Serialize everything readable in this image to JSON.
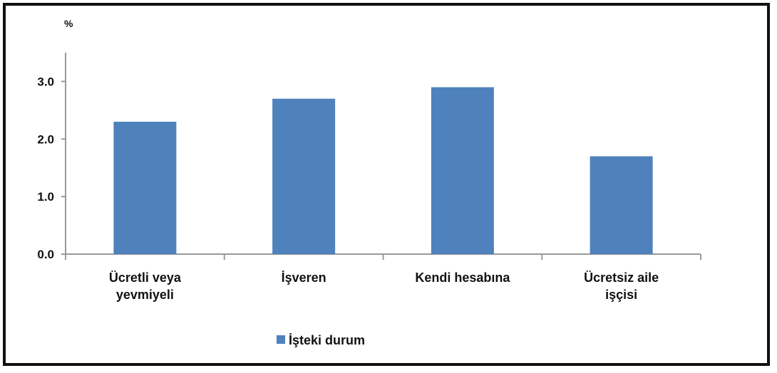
{
  "chart_data": {
    "type": "bar",
    "unit_label": "%",
    "categories": [
      [
        "Ücretli veya",
        "yevmiyeli"
      ],
      [
        "İşveren"
      ],
      [
        "Kendi hesabına"
      ],
      [
        "Ücretsiz aile",
        "işçisi"
      ]
    ],
    "series": [
      {
        "name": "İşteki durum",
        "values": [
          2.3,
          2.7,
          2.9,
          1.7
        ],
        "color": "#4f81bd"
      }
    ],
    "yticks": [
      "0.0",
      "1.0",
      "2.0",
      "3.0"
    ],
    "ylim": [
      0,
      3.5
    ],
    "grid": false,
    "legend_position": "bottom-center",
    "axis_color": "#999999"
  }
}
